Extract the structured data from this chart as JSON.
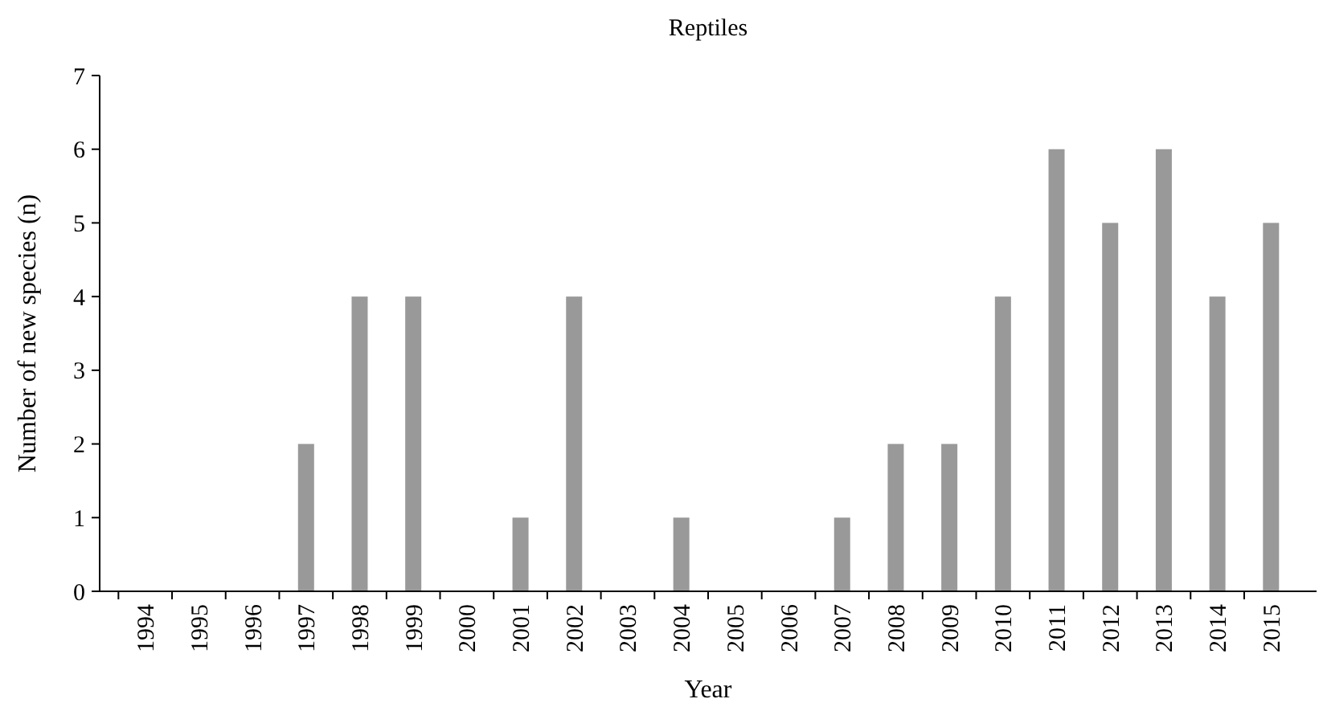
{
  "chart_data": {
    "type": "bar",
    "title": "Reptiles",
    "xlabel": "Year",
    "ylabel": "Number of new species (n)",
    "categories": [
      "1994",
      "1995",
      "1996",
      "1997",
      "1998",
      "1999",
      "2000",
      "2001",
      "2002",
      "2003",
      "2004",
      "2005",
      "2006",
      "2007",
      "2008",
      "2009",
      "2010",
      "2011",
      "2012",
      "2013",
      "2014",
      "2015"
    ],
    "values": [
      0,
      0,
      0,
      2,
      4,
      4,
      0,
      1,
      4,
      0,
      1,
      0,
      0,
      1,
      2,
      2,
      4,
      6,
      5,
      6,
      4,
      5
    ],
    "color": "#999999",
    "ylim": [
      0,
      7
    ],
    "yticks": [
      0,
      1,
      2,
      3,
      4,
      5,
      6,
      7
    ],
    "grid": false
  }
}
